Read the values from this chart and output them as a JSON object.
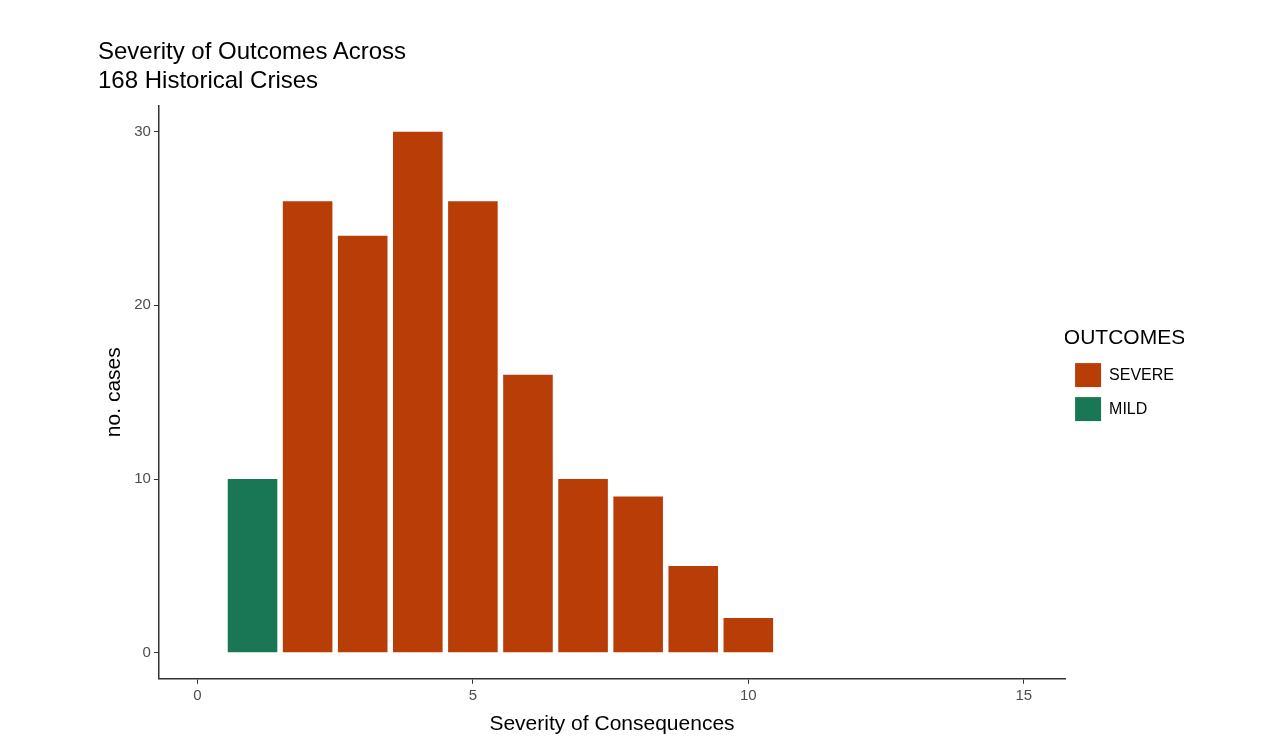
{
  "chart_data": {
    "type": "bar",
    "title": "Severity of Outcomes Across\n168 Historical Crises",
    "xlabel": "Severity of Consequences",
    "ylabel": "no. cases",
    "legend_title": "OUTCOMES",
    "series": [
      {
        "name": "SEVERE",
        "color": "#b93d07",
        "x": [
          2,
          3,
          4,
          5,
          6,
          7,
          8,
          9,
          10
        ],
        "values": [
          26,
          24,
          30,
          26,
          16,
          10,
          9,
          5,
          2
        ]
      },
      {
        "name": "MILD",
        "color": "#1a7755",
        "x": [
          1
        ],
        "values": [
          10
        ]
      }
    ],
    "xlim": [
      -0.7,
      15.75
    ],
    "xticks": [
      0,
      5,
      10,
      15
    ],
    "ylim": [
      -1.5,
      31.5
    ],
    "yticks": [
      0,
      10,
      20,
      30
    ],
    "grid": false,
    "legend": "right"
  }
}
